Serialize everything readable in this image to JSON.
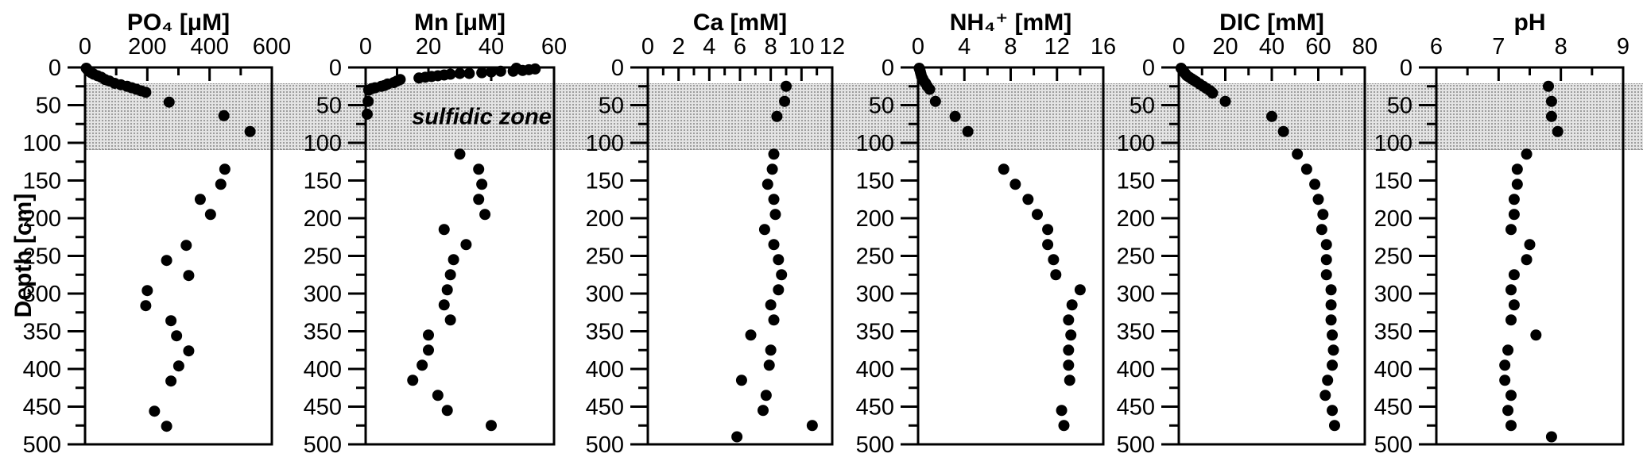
{
  "figure": {
    "depth_axis": {
      "label": "Depth [cm]",
      "min": 0,
      "max": 500,
      "major_tick_step": 50,
      "minor_tick_step": 25,
      "tick_labels": [
        "0",
        "50",
        "100",
        "150",
        "200",
        "250",
        "300",
        "350",
        "400",
        "450",
        "500"
      ]
    },
    "sulfidic_zone": {
      "label": "sulfidic zone",
      "depth_top_cm": 21,
      "depth_bottom_cm": 107
    },
    "colors": {
      "marker": "#000000",
      "axis": "#000000",
      "band_background": "#e4e4e4",
      "band_dots": "#9d9d9d",
      "background": "#ffffff"
    }
  },
  "chart_data": [
    {
      "type": "scatter",
      "name": "PO4",
      "title": "PO₄ [μM]",
      "unit": "μM",
      "xlabel": "PO₄ [μM]",
      "ylabel": "Depth [cm]",
      "x_range": [
        0,
        600
      ],
      "x_major_ticks": [
        0,
        200,
        400,
        600
      ],
      "x_minor_ticks": [
        100,
        300,
        500
      ],
      "depth_range": [
        0,
        500
      ],
      "points": [
        [
          4,
          1
        ],
        [
          8,
          3
        ],
        [
          13,
          5
        ],
        [
          20,
          7
        ],
        [
          28,
          9
        ],
        [
          40,
          11
        ],
        [
          52,
          13
        ],
        [
          64,
          16
        ],
        [
          78,
          18
        ],
        [
          95,
          21
        ],
        [
          115,
          23
        ],
        [
          135,
          25
        ],
        [
          150,
          27
        ],
        [
          165,
          29
        ],
        [
          180,
          31
        ],
        [
          195,
          33
        ],
        [
          270,
          46
        ],
        [
          446,
          64
        ],
        [
          530,
          85
        ],
        [
          449,
          135
        ],
        [
          436,
          155
        ],
        [
          370,
          175
        ],
        [
          403,
          195
        ],
        [
          325,
          236
        ],
        [
          262,
          256
        ],
        [
          333,
          276
        ],
        [
          200,
          296
        ],
        [
          195,
          316
        ],
        [
          276,
          336
        ],
        [
          294,
          356
        ],
        [
          333,
          376
        ],
        [
          301,
          396
        ],
        [
          276,
          416
        ],
        [
          223,
          456
        ],
        [
          262,
          476
        ]
      ]
    },
    {
      "type": "scatter",
      "name": "Mn",
      "title": "Mn [μM]",
      "unit": "μM",
      "xlabel": "Mn [μM]",
      "ylabel": "Depth [cm]",
      "x_range": [
        0,
        60
      ],
      "x_major_ticks": [
        0,
        20,
        40,
        60
      ],
      "x_minor_ticks": [
        10,
        30,
        50
      ],
      "depth_range": [
        0,
        500
      ],
      "points": [
        [
          48,
          1
        ],
        [
          54,
          2
        ],
        [
          52,
          3
        ],
        [
          50,
          4
        ],
        [
          47,
          5
        ],
        [
          43,
          5
        ],
        [
          40,
          6
        ],
        [
          37,
          7
        ],
        [
          33,
          8
        ],
        [
          30,
          8
        ],
        [
          27,
          9
        ],
        [
          25,
          10
        ],
        [
          23,
          11
        ],
        [
          21,
          12
        ],
        [
          19,
          13
        ],
        [
          17,
          14
        ],
        [
          11,
          16
        ],
        [
          10,
          18
        ],
        [
          9,
          20
        ],
        [
          7,
          22
        ],
        [
          6,
          24
        ],
        [
          5,
          25
        ],
        [
          3,
          27
        ],
        [
          2,
          28
        ],
        [
          1,
          30
        ],
        [
          0.8,
          45
        ],
        [
          0.5,
          62
        ],
        [
          30,
          115
        ],
        [
          36,
          135
        ],
        [
          37,
          155
        ],
        [
          36,
          175
        ],
        [
          38,
          195
        ],
        [
          25,
          215
        ],
        [
          32,
          235
        ],
        [
          28,
          255
        ],
        [
          27,
          275
        ],
        [
          26,
          295
        ],
        [
          25,
          315
        ],
        [
          27,
          335
        ],
        [
          20,
          355
        ],
        [
          20,
          375
        ],
        [
          18,
          395
        ],
        [
          15,
          415
        ],
        [
          23,
          435
        ],
        [
          26,
          455
        ],
        [
          40,
          475
        ]
      ]
    },
    {
      "type": "scatter",
      "name": "Ca",
      "title": "Ca [mM]",
      "unit": "mM",
      "xlabel": "Ca [mM]",
      "ylabel": "Depth [cm]",
      "x_range": [
        0,
        12
      ],
      "x_major_ticks": [
        0,
        2,
        4,
        6,
        8,
        10,
        12
      ],
      "x_minor_ticks": [
        1,
        3,
        5,
        7,
        9,
        11
      ],
      "depth_range": [
        0,
        500
      ],
      "points": [
        [
          9.0,
          25
        ],
        [
          8.9,
          45
        ],
        [
          8.4,
          65
        ],
        [
          8.2,
          115
        ],
        [
          8.1,
          135
        ],
        [
          7.8,
          155
        ],
        [
          8.2,
          175
        ],
        [
          8.3,
          195
        ],
        [
          7.6,
          215
        ],
        [
          8.2,
          235
        ],
        [
          8.5,
          255
        ],
        [
          8.7,
          275
        ],
        [
          8.5,
          295
        ],
        [
          8.0,
          315
        ],
        [
          8.2,
          335
        ],
        [
          6.7,
          355
        ],
        [
          8.0,
          375
        ],
        [
          7.9,
          395
        ],
        [
          6.1,
          415
        ],
        [
          7.7,
          435
        ],
        [
          7.5,
          455
        ],
        [
          10.7,
          475
        ],
        [
          5.8,
          490
        ]
      ]
    },
    {
      "type": "scatter",
      "name": "NH4",
      "title": "NH₄⁺ [mM]",
      "unit": "mM",
      "xlabel": "NH₄⁺ [mM]",
      "ylabel": "Depth [cm]",
      "x_range": [
        0,
        16
      ],
      "x_major_ticks": [
        0,
        4,
        8,
        12,
        16
      ],
      "x_minor_ticks": [
        2,
        6,
        10,
        14
      ],
      "depth_range": [
        0,
        500
      ],
      "points": [
        [
          0.1,
          1
        ],
        [
          0.15,
          3
        ],
        [
          0.2,
          6
        ],
        [
          0.25,
          9
        ],
        [
          0.3,
          12
        ],
        [
          0.4,
          15
        ],
        [
          0.5,
          18
        ],
        [
          0.65,
          21
        ],
        [
          0.8,
          25
        ],
        [
          1.0,
          29
        ],
        [
          1.5,
          45
        ],
        [
          3.2,
          65
        ],
        [
          4.3,
          85
        ],
        [
          7.4,
          135
        ],
        [
          8.4,
          155
        ],
        [
          9.5,
          175
        ],
        [
          10.3,
          195
        ],
        [
          11.2,
          215
        ],
        [
          11.2,
          235
        ],
        [
          11.7,
          255
        ],
        [
          11.9,
          275
        ],
        [
          14.0,
          295
        ],
        [
          13.3,
          315
        ],
        [
          13.0,
          335
        ],
        [
          13.2,
          355
        ],
        [
          13.0,
          375
        ],
        [
          13.0,
          395
        ],
        [
          13.1,
          415
        ],
        [
          12.4,
          455
        ],
        [
          12.6,
          475
        ]
      ]
    },
    {
      "type": "scatter",
      "name": "DIC",
      "title": "DIC [mM]",
      "unit": "mM",
      "xlabel": "DIC [mM]",
      "ylabel": "Depth [cm]",
      "x_range": [
        0,
        80
      ],
      "x_major_ticks": [
        0,
        20,
        40,
        60,
        80
      ],
      "x_minor_ticks": [
        10,
        30,
        50,
        70
      ],
      "depth_range": [
        0,
        500
      ],
      "points": [
        [
          1,
          1
        ],
        [
          1.5,
          3
        ],
        [
          2,
          5
        ],
        [
          2.5,
          7
        ],
        [
          3,
          9
        ],
        [
          3.5,
          11
        ],
        [
          4.5,
          13
        ],
        [
          5.5,
          15
        ],
        [
          6.5,
          17
        ],
        [
          7.5,
          19
        ],
        [
          9,
          22
        ],
        [
          10.5,
          25
        ],
        [
          12,
          28
        ],
        [
          13.5,
          31
        ],
        [
          14.5,
          34
        ],
        [
          20,
          45
        ],
        [
          40,
          65
        ],
        [
          45,
          85
        ],
        [
          51,
          115
        ],
        [
          55,
          135
        ],
        [
          58.5,
          155
        ],
        [
          60,
          175
        ],
        [
          62,
          195
        ],
        [
          61.5,
          215
        ],
        [
          63.5,
          235
        ],
        [
          63.5,
          255
        ],
        [
          63.5,
          275
        ],
        [
          65.5,
          295
        ],
        [
          65.5,
          315
        ],
        [
          65.5,
          335
        ],
        [
          66,
          355
        ],
        [
          66.5,
          375
        ],
        [
          66,
          395
        ],
        [
          64,
          415
        ],
        [
          63,
          435
        ],
        [
          66,
          455
        ],
        [
          67,
          475
        ]
      ]
    },
    {
      "type": "scatter",
      "name": "pH",
      "title": "pH",
      "unit": "",
      "xlabel": "pH",
      "ylabel": "Depth [cm]",
      "x_range": [
        6,
        9
      ],
      "x_major_ticks": [
        6,
        7,
        8,
        9
      ],
      "x_minor_ticks": [
        6.5,
        7.5,
        8.5
      ],
      "depth_range": [
        0,
        500
      ],
      "points": [
        [
          7.8,
          25
        ],
        [
          7.85,
          45
        ],
        [
          7.85,
          65
        ],
        [
          7.95,
          85
        ],
        [
          7.45,
          115
        ],
        [
          7.3,
          135
        ],
        [
          7.3,
          155
        ],
        [
          7.25,
          175
        ],
        [
          7.25,
          195
        ],
        [
          7.2,
          215
        ],
        [
          7.5,
          235
        ],
        [
          7.45,
          255
        ],
        [
          7.25,
          275
        ],
        [
          7.2,
          295
        ],
        [
          7.25,
          315
        ],
        [
          7.2,
          335
        ],
        [
          7.6,
          355
        ],
        [
          7.15,
          375
        ],
        [
          7.1,
          395
        ],
        [
          7.1,
          415
        ],
        [
          7.2,
          435
        ],
        [
          7.15,
          455
        ],
        [
          7.2,
          475
        ],
        [
          7.85,
          490
        ]
      ]
    }
  ]
}
